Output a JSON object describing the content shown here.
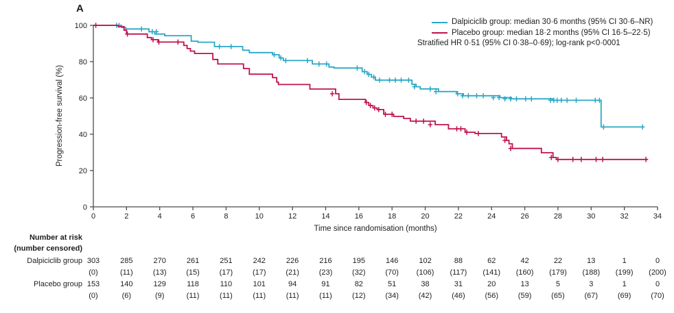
{
  "panel_label": "A",
  "colors": {
    "dalpiciclib": "#29A7C7",
    "placebo": "#C01050",
    "axis": "#4a4a4a",
    "text": "#1d1d1d"
  },
  "legend": {
    "entries": [
      {
        "label": "Dalpiciclib group: median 30·6 months (95% CI 30·6–NR)",
        "color": "#29A7C7"
      },
      {
        "label": "Placebo group: median 18·2 months (95% CI 16·5–22·5)",
        "color": "#C01050"
      }
    ],
    "note": "Stratified HR 0·51 (95% CI 0·38–0·69); log-rank p<0·0001"
  },
  "chart_data": {
    "type": "line",
    "subtype": "kaplan-meier-step",
    "title": "",
    "xlabel": "Time since randomisation (months)",
    "ylabel": "Progression-free survival (%)",
    "xlim": [
      0,
      34
    ],
    "ylim": [
      0,
      100
    ],
    "xticks": [
      0,
      2,
      4,
      6,
      8,
      10,
      12,
      14,
      16,
      18,
      20,
      22,
      24,
      26,
      28,
      30,
      32,
      34
    ],
    "yticks": [
      0,
      20,
      40,
      60,
      80,
      100
    ],
    "grid": false,
    "legend_position": "top-right",
    "series": [
      {
        "name": "Dalpiciclib group",
        "color": "#29A7C7",
        "steps": [
          [
            0,
            100
          ],
          [
            1.7,
            98.8
          ],
          [
            1.95,
            98
          ],
          [
            3.35,
            96.5
          ],
          [
            3.7,
            95.2
          ],
          [
            4.3,
            94.3
          ],
          [
            5.9,
            91.3
          ],
          [
            6.3,
            90.7
          ],
          [
            7.3,
            88.3
          ],
          [
            9.0,
            86.3
          ],
          [
            9.4,
            85
          ],
          [
            10.8,
            83.8
          ],
          [
            11.2,
            82
          ],
          [
            11.45,
            80.6
          ],
          [
            13.2,
            78.7
          ],
          [
            14.2,
            77
          ],
          [
            14.5,
            76.5
          ],
          [
            16.2,
            74.5
          ],
          [
            16.5,
            73
          ],
          [
            16.75,
            71.5
          ],
          [
            17.0,
            69.8
          ],
          [
            19.2,
            67.5
          ],
          [
            19.45,
            66.2
          ],
          [
            19.7,
            65
          ],
          [
            20.8,
            63.5
          ],
          [
            21.9,
            62.3
          ],
          [
            22.3,
            61.2
          ],
          [
            24.5,
            60.2
          ],
          [
            25.2,
            59.5
          ],
          [
            27.7,
            58.7
          ],
          [
            30.6,
            44
          ],
          [
            33.1,
            44
          ]
        ],
        "end": 33.1,
        "censors": [
          [
            1.4,
            100
          ],
          [
            1.55,
            100
          ],
          [
            2.9,
            98
          ],
          [
            3.55,
            96.5
          ],
          [
            3.8,
            96.5
          ],
          [
            7.6,
            88.3
          ],
          [
            8.3,
            88.3
          ],
          [
            10.9,
            83.8
          ],
          [
            11.3,
            82
          ],
          [
            11.6,
            80.6
          ],
          [
            12.9,
            80.6
          ],
          [
            13.6,
            78.7
          ],
          [
            14.05,
            78.7
          ],
          [
            15.9,
            76.5
          ],
          [
            16.35,
            74.5
          ],
          [
            16.6,
            73
          ],
          [
            16.9,
            71.5
          ],
          [
            17.25,
            69.8
          ],
          [
            17.85,
            69.8
          ],
          [
            18.2,
            69.8
          ],
          [
            18.55,
            69.8
          ],
          [
            19.0,
            69.8
          ],
          [
            19.35,
            66.2
          ],
          [
            20.3,
            65
          ],
          [
            20.65,
            63.5
          ],
          [
            21.95,
            62.3
          ],
          [
            22.25,
            61.2
          ],
          [
            22.6,
            61.2
          ],
          [
            23.1,
            61.2
          ],
          [
            23.5,
            61.2
          ],
          [
            24.1,
            60.2
          ],
          [
            24.45,
            60.2
          ],
          [
            24.8,
            59.5
          ],
          [
            25.15,
            59.5
          ],
          [
            25.5,
            59.5
          ],
          [
            26.05,
            59.5
          ],
          [
            26.4,
            59.5
          ],
          [
            27.55,
            58.7
          ],
          [
            27.75,
            58.7
          ],
          [
            27.95,
            58.7
          ],
          [
            28.2,
            58.7
          ],
          [
            28.55,
            58.7
          ],
          [
            29.1,
            58.7
          ],
          [
            30.25,
            58.7
          ],
          [
            30.5,
            58.7
          ],
          [
            30.75,
            44
          ],
          [
            33.1,
            44
          ]
        ]
      },
      {
        "name": "Placebo group",
        "color": "#C01050",
        "steps": [
          [
            0,
            100
          ],
          [
            1.5,
            99.3
          ],
          [
            1.85,
            97.3
          ],
          [
            2.0,
            95.2
          ],
          [
            3.25,
            93.3
          ],
          [
            3.5,
            92.1
          ],
          [
            3.9,
            90.8
          ],
          [
            5.45,
            88.9
          ],
          [
            5.65,
            87.2
          ],
          [
            5.85,
            85.8
          ],
          [
            6.1,
            84.5
          ],
          [
            7.2,
            81.2
          ],
          [
            7.5,
            78.7
          ],
          [
            9.05,
            76.2
          ],
          [
            9.4,
            73.1
          ],
          [
            10.8,
            71.2
          ],
          [
            11.05,
            68.7
          ],
          [
            11.15,
            67.4
          ],
          [
            13.05,
            64.9
          ],
          [
            14.6,
            62.3
          ],
          [
            14.8,
            59.2
          ],
          [
            16.4,
            57.5
          ],
          [
            16.6,
            55.8
          ],
          [
            16.85,
            54.5
          ],
          [
            17.1,
            53.6
          ],
          [
            17.5,
            51
          ],
          [
            18.1,
            49.8
          ],
          [
            18.7,
            48.7
          ],
          [
            19.1,
            47.2
          ],
          [
            20.6,
            45.3
          ],
          [
            21.4,
            43
          ],
          [
            22.4,
            41.1
          ],
          [
            23.0,
            40.4
          ],
          [
            24.6,
            38.5
          ],
          [
            24.9,
            36.6
          ],
          [
            25.05,
            34.7
          ],
          [
            25.25,
            32.2
          ],
          [
            27.0,
            29.8
          ],
          [
            27.7,
            27.2
          ],
          [
            27.9,
            26.1
          ],
          [
            33.4,
            26.1
          ]
        ],
        "end": 33.4,
        "censors": [
          [
            0.15,
            100
          ],
          [
            2.05,
            95.2
          ],
          [
            3.6,
            92.1
          ],
          [
            3.95,
            90.8
          ],
          [
            5.1,
            90.8
          ],
          [
            14.4,
            62.3
          ],
          [
            16.45,
            57.5
          ],
          [
            16.7,
            55.8
          ],
          [
            16.95,
            54.5
          ],
          [
            17.2,
            53.6
          ],
          [
            17.6,
            51
          ],
          [
            18.0,
            51
          ],
          [
            19.45,
            47.2
          ],
          [
            19.9,
            47.2
          ],
          [
            20.3,
            45.3
          ],
          [
            21.9,
            43
          ],
          [
            22.15,
            43
          ],
          [
            22.5,
            41.1
          ],
          [
            23.2,
            40.4
          ],
          [
            24.8,
            36.6
          ],
          [
            25.15,
            32.2
          ],
          [
            27.6,
            27.2
          ],
          [
            28.0,
            26.1
          ],
          [
            28.9,
            26.1
          ],
          [
            29.4,
            26.1
          ],
          [
            30.3,
            26.1
          ],
          [
            30.7,
            26.1
          ],
          [
            33.3,
            26.1
          ]
        ]
      }
    ]
  },
  "risk_table": {
    "header_line1": "Number at risk",
    "header_line2": "(number censored)",
    "timepoints": [
      0,
      2,
      4,
      6,
      8,
      10,
      12,
      14,
      16,
      18,
      20,
      22,
      24,
      26,
      28,
      30,
      32,
      34
    ],
    "rows": [
      {
        "label": "Dalpiciclib group",
        "at_risk": [
          303,
          285,
          270,
          261,
          251,
          242,
          226,
          216,
          195,
          146,
          102,
          88,
          62,
          42,
          22,
          13,
          1,
          0
        ],
        "censored": [
          0,
          11,
          13,
          15,
          17,
          17,
          21,
          23,
          32,
          70,
          106,
          117,
          141,
          160,
          179,
          188,
          199,
          200
        ]
      },
      {
        "label": "Placebo group",
        "at_risk": [
          153,
          140,
          129,
          118,
          110,
          101,
          94,
          91,
          82,
          51,
          38,
          31,
          20,
          13,
          5,
          3,
          1,
          0
        ],
        "censored": [
          0,
          6,
          9,
          11,
          11,
          11,
          11,
          11,
          12,
          34,
          42,
          46,
          56,
          59,
          65,
          67,
          69,
          70
        ]
      }
    ]
  }
}
